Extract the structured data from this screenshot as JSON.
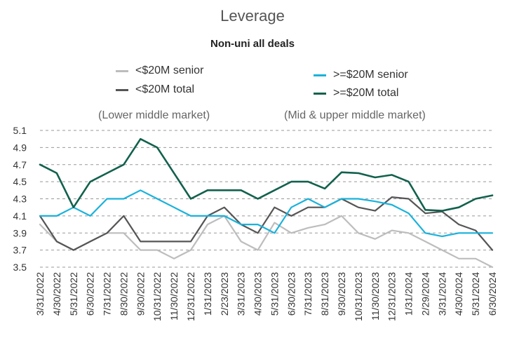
{
  "chart_data": {
    "type": "line",
    "title": "Leverage",
    "subtitle": "Non-uni all deals",
    "group_labels": [
      "(Lower middle market)",
      "(Mid & upper middle market)"
    ],
    "categories": [
      "3/31/2022",
      "4/30/2022",
      "5/31/2022",
      "6/30/2022",
      "7/31/2022",
      "8/30/2022",
      "9/30/2022",
      "10/31/2022",
      "11/30/2022",
      "12/31/2022",
      "1/31/2023",
      "2/23/2023",
      "3/31/2023",
      "4/30/2023",
      "5/31/2023",
      "6/30/2023",
      "7/31/2023",
      "8/31/2023",
      "9/30/2023",
      "10/31/2023",
      "11/30/2023",
      "12/31/2023",
      "1/31/2024",
      "2/29/2024",
      "3/31/2024",
      "4/30/2024",
      "5/31/2024",
      "6/30/2024"
    ],
    "x_tick_labels": [
      "3/31/2022",
      "4/30/2022",
      "5/31/2022",
      "6/30/2022",
      "7/31/2022",
      "8/30/2022",
      "9/30/2022",
      "10/31/2022",
      "11/30/2022",
      "12/31/2022",
      "1/31/2023",
      "2/23/2023",
      "3/31/2023",
      "4/30/2023",
      "5/31/2023",
      "6/30/2023",
      "7/31/2023",
      "8/31/2023",
      "9/30/2023",
      "10/31/2023",
      "11/30/2023",
      "12/31/2023",
      "1/31/2024",
      "2/29/2024",
      "3/31/2024",
      "4/30/2024",
      "5/31/2024",
      "6/30/2024"
    ],
    "y_tick_labels": [
      "5.1",
      "4.9",
      "4.7",
      "4.5",
      "4.3",
      "4.1",
      "3.9",
      "3.7",
      "3.5"
    ],
    "ylim": [
      3.5,
      5.1
    ],
    "grid": "horizontal dashed",
    "legend_placement": "top",
    "series": [
      {
        "name": "<$20M senior",
        "color": "#bdbdbd",
        "values": [
          4.0,
          3.8,
          3.7,
          3.8,
          3.9,
          3.9,
          3.7,
          3.7,
          3.6,
          3.7,
          4.0,
          4.1,
          3.8,
          3.7,
          4.02,
          3.9,
          3.96,
          4.0,
          4.1,
          3.9,
          3.83,
          3.93,
          3.9,
          3.8,
          3.7,
          3.6,
          3.6,
          3.5
        ]
      },
      {
        "name": "<$20M total",
        "color": "#555555",
        "values": [
          4.1,
          3.8,
          3.7,
          3.8,
          3.9,
          4.1,
          3.8,
          3.8,
          3.8,
          3.8,
          4.1,
          4.2,
          4.0,
          3.9,
          4.2,
          4.1,
          4.2,
          4.2,
          4.3,
          4.2,
          4.16,
          4.32,
          4.3,
          4.13,
          4.15,
          4.0,
          3.93,
          3.7
        ]
      },
      {
        "name": ">=$20M senior",
        "color": "#19b2dc",
        "values": [
          4.1,
          4.1,
          4.2,
          4.1,
          4.3,
          4.3,
          4.4,
          4.3,
          4.2,
          4.1,
          4.1,
          4.1,
          4.0,
          4.0,
          3.9,
          4.2,
          4.3,
          4.2,
          4.3,
          4.3,
          4.27,
          4.23,
          4.13,
          3.9,
          3.86,
          3.9,
          3.9,
          3.9
        ]
      },
      {
        "name": ">=$20M total",
        "color": "#12614d",
        "values": [
          4.7,
          4.6,
          4.2,
          4.5,
          4.6,
          4.7,
          5.0,
          4.9,
          4.6,
          4.3,
          4.4,
          4.4,
          4.4,
          4.3,
          4.4,
          4.5,
          4.5,
          4.42,
          4.61,
          4.6,
          4.55,
          4.58,
          4.5,
          4.17,
          4.16,
          4.2,
          4.3,
          4.34
        ]
      }
    ]
  }
}
